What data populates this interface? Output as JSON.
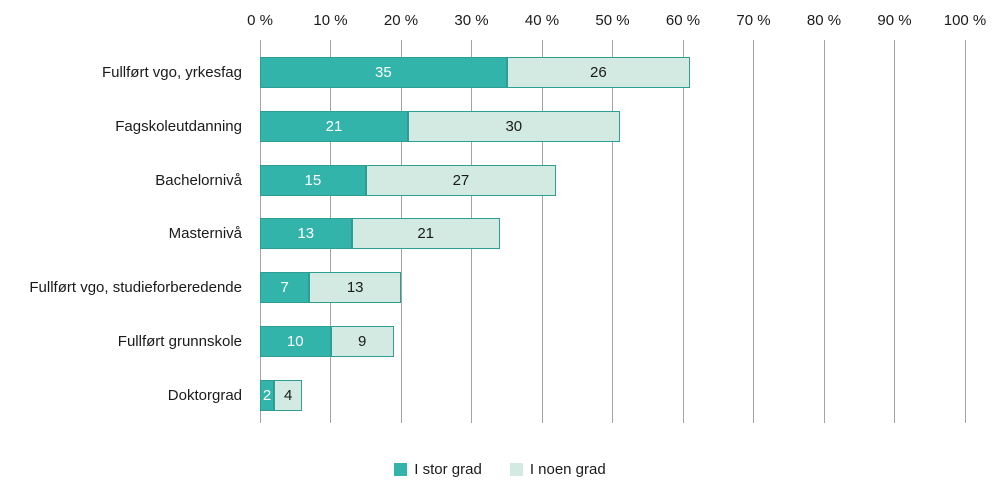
{
  "chart_data": {
    "type": "bar",
    "orientation": "horizontal",
    "stacked": true,
    "categories": [
      "Fullført vgo, yrkesfag",
      "Fagskoleutdanning",
      "Bachelornivå",
      "Masternivå",
      "Fullført vgo, studieforberedende",
      "Fullført grunnskole",
      "Doktorgrad"
    ],
    "series": [
      {
        "name": "I stor grad",
        "color": "#32b4ab",
        "label_color": "#ffffff",
        "values": [
          35,
          21,
          15,
          13,
          7,
          10,
          2
        ]
      },
      {
        "name": "I noen grad",
        "color": "#d2eae2",
        "label_color": "#1a1a1a",
        "values": [
          26,
          30,
          27,
          21,
          13,
          9,
          4
        ]
      }
    ],
    "x_axis": {
      "position": "top",
      "min": 0,
      "max": 100,
      "tick_step": 10,
      "ticks": [
        "0 %",
        "10 %",
        "20 %",
        "30 %",
        "40 %",
        "50 %",
        "60 %",
        "70 %",
        "80 %",
        "90 %",
        "100 %"
      ]
    },
    "grid": true,
    "gridline_color": "#a3a3a3",
    "bar_border_color": "#2e9e94",
    "legend_position": "bottom",
    "legend": [
      {
        "label": "I stor grad",
        "color": "#32b4ab"
      },
      {
        "label": "I noen grad",
        "color": "#d2eae2"
      }
    ]
  }
}
